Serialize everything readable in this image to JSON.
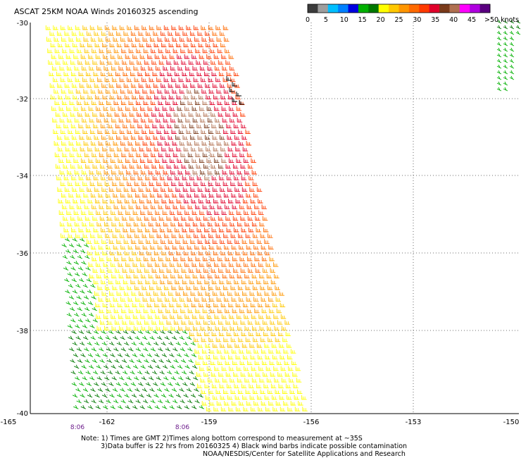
{
  "title": "ASCAT 25KM NOAA Winds 20160325 ascending",
  "legend": {
    "colors": [
      "#3c3c3c",
      "#9e9e9e",
      "#00bfff",
      "#0080ff",
      "#0000e0",
      "#00b000",
      "#007800",
      "#ffff00",
      "#ffc800",
      "#ff9600",
      "#ff6a00",
      "#ff3a00",
      "#e0002a",
      "#7a3a1a",
      "#b07050",
      "#ff00ff",
      "#b000e0",
      "#5a0080"
    ],
    "labels": [
      "0",
      "5",
      "10",
      "15",
      "20",
      "25",
      "30",
      "35",
      "40",
      "45",
      ">50 knots"
    ]
  },
  "y_axis": {
    "labels": [
      "-30",
      "-32",
      "-34",
      "-36",
      "-38",
      "-40"
    ]
  },
  "x_axis": {
    "labels": [
      "-165",
      "-162",
      "-159",
      "-156",
      "-153",
      "-150"
    ]
  },
  "time_marks": [
    "8:06",
    "8:06"
  ],
  "notes": [
    "Note: 1) Times are GMT 2)Times along bottom correspond to measurement at ~35S",
    "3)Data buffer is 22 hrs from 20160325 4) Black wind barbs indicate possible contamination",
    "NOAA/NESDIS/Center for Satellite Applications and Research"
  ]
}
